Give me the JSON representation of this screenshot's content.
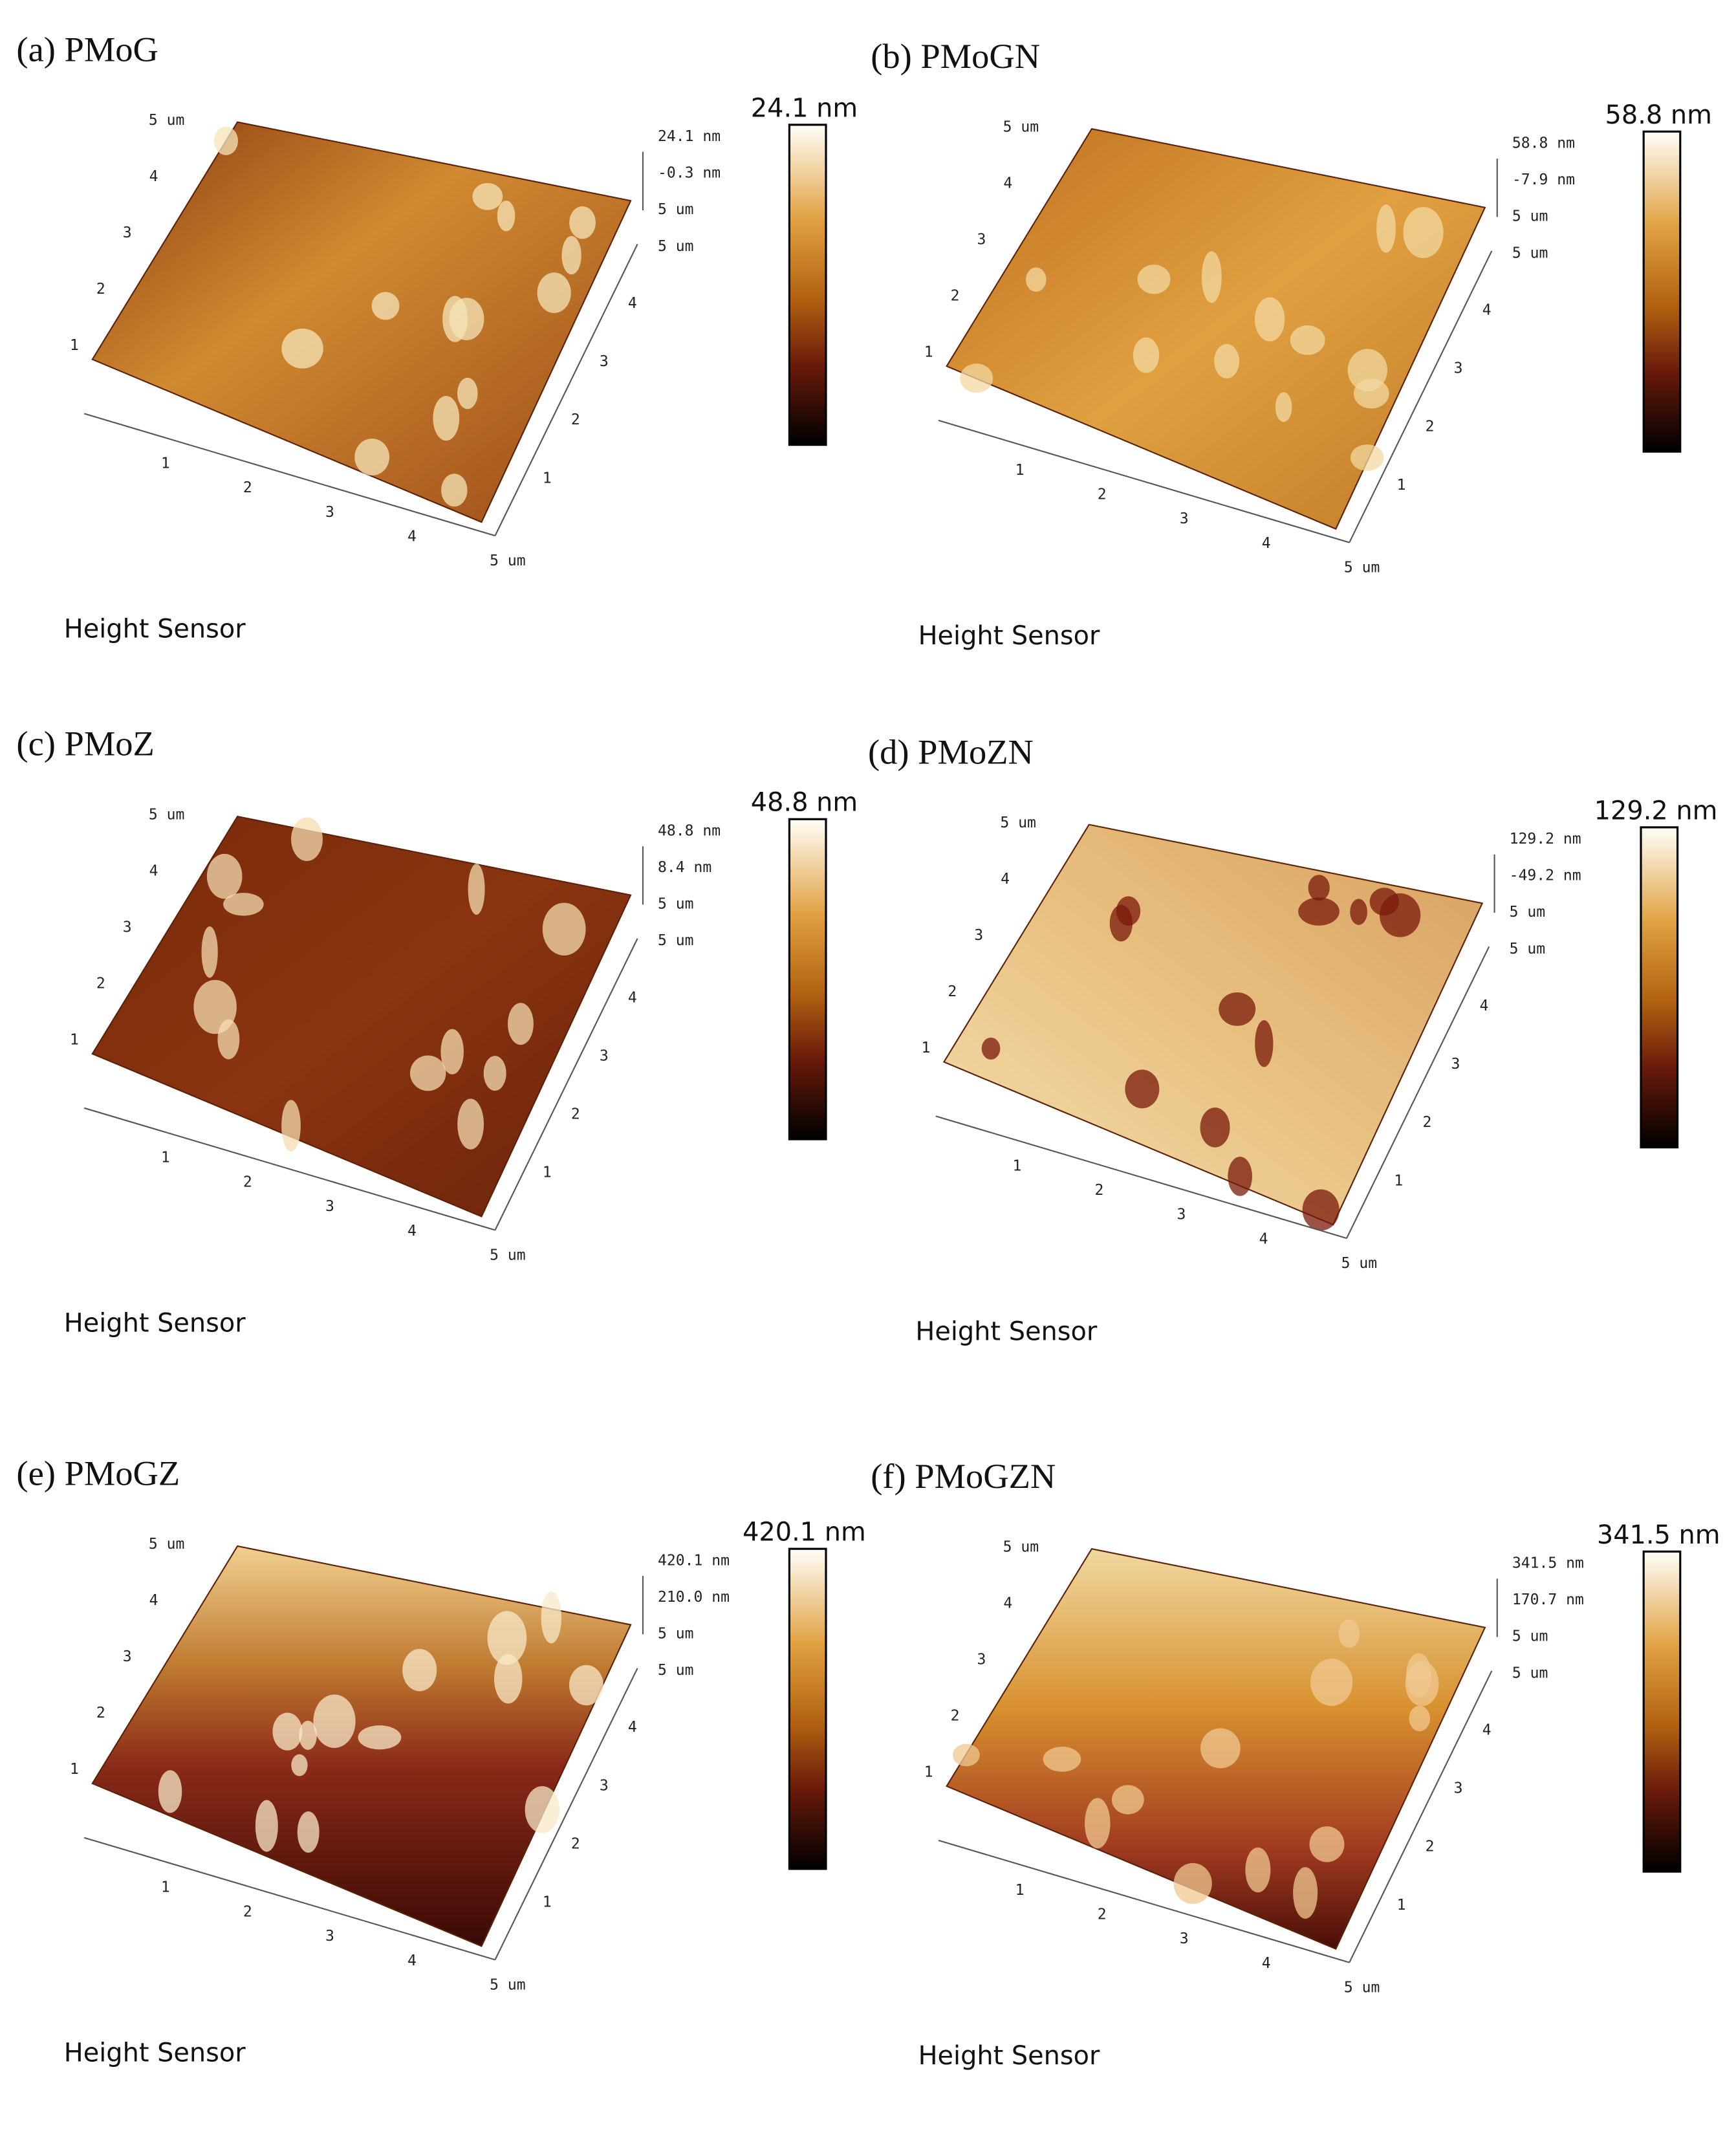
{
  "panels": [
    {
      "label": "(a) PMoG",
      "scale_max": "24.1 nm",
      "z_labels": [
        "24.1 nm",
        "-0.3 nm",
        "5 um",
        "5 um"
      ],
      "front_ticks": [
        "1",
        "2",
        "3",
        "4",
        "5 um"
      ],
      "side_ticks": [
        "1",
        "2",
        "3",
        "4"
      ],
      "back_ticks": [
        "1",
        "2",
        "3",
        "4",
        "5 um"
      ],
      "footer": "Height Sensor"
    },
    {
      "label": "(b) PMoGN",
      "scale_max": "58.8 nm",
      "z_labels": [
        "58.8 nm",
        "-7.9 nm",
        "5 um",
        "5 um"
      ],
      "front_ticks": [
        "1",
        "2",
        "3",
        "4",
        "5 um"
      ],
      "side_ticks": [
        "1",
        "2",
        "3",
        "4"
      ],
      "back_ticks": [
        "1",
        "2",
        "3",
        "4",
        "5 um"
      ],
      "footer": "Height Sensor"
    },
    {
      "label": "(c) PMoZ",
      "scale_max": "48.8 nm",
      "z_labels": [
        "48.8 nm",
        "8.4 nm",
        "5 um",
        "5 um"
      ],
      "front_ticks": [
        "1",
        "2",
        "3",
        "4",
        "5 um"
      ],
      "side_ticks": [
        "1",
        "2",
        "3",
        "4"
      ],
      "back_ticks": [
        "1",
        "2",
        "3",
        "4",
        "5 um"
      ],
      "footer": "Height Sensor"
    },
    {
      "label": "(d) PMoZN",
      "scale_max": "129.2 nm",
      "z_labels": [
        "129.2 nm",
        "-49.2 nm",
        "5 um",
        "5 um"
      ],
      "front_ticks": [
        "1",
        "2",
        "3",
        "4",
        "5 um"
      ],
      "side_ticks": [
        "1",
        "2",
        "3",
        "4"
      ],
      "back_ticks": [
        "1",
        "2",
        "3",
        "4",
        "5 um"
      ],
      "footer": "Height Sensor"
    },
    {
      "label": "(e) PMoGZ",
      "scale_max": "420.1 nm",
      "z_labels": [
        "420.1 nm",
        "210.0 nm",
        "5 um",
        "5 um"
      ],
      "front_ticks": [
        "1",
        "2",
        "3",
        "4",
        "5 um"
      ],
      "side_ticks": [
        "1",
        "2",
        "3",
        "4"
      ],
      "back_ticks": [
        "1",
        "2",
        "3",
        "4",
        "5 um"
      ],
      "footer": "Height Sensor"
    },
    {
      "label": "(f) PMoGZN",
      "scale_max": "341.5 nm",
      "z_labels": [
        "341.5 nm",
        "170.7 nm",
        "5 um",
        "5 um"
      ],
      "front_ticks": [
        "1",
        "2",
        "3",
        "4",
        "5 um"
      ],
      "side_ticks": [
        "1",
        "2",
        "3",
        "4"
      ],
      "back_ticks": [
        "1",
        "2",
        "3",
        "4",
        "5 um"
      ],
      "footer": "Height Sensor"
    }
  ]
}
